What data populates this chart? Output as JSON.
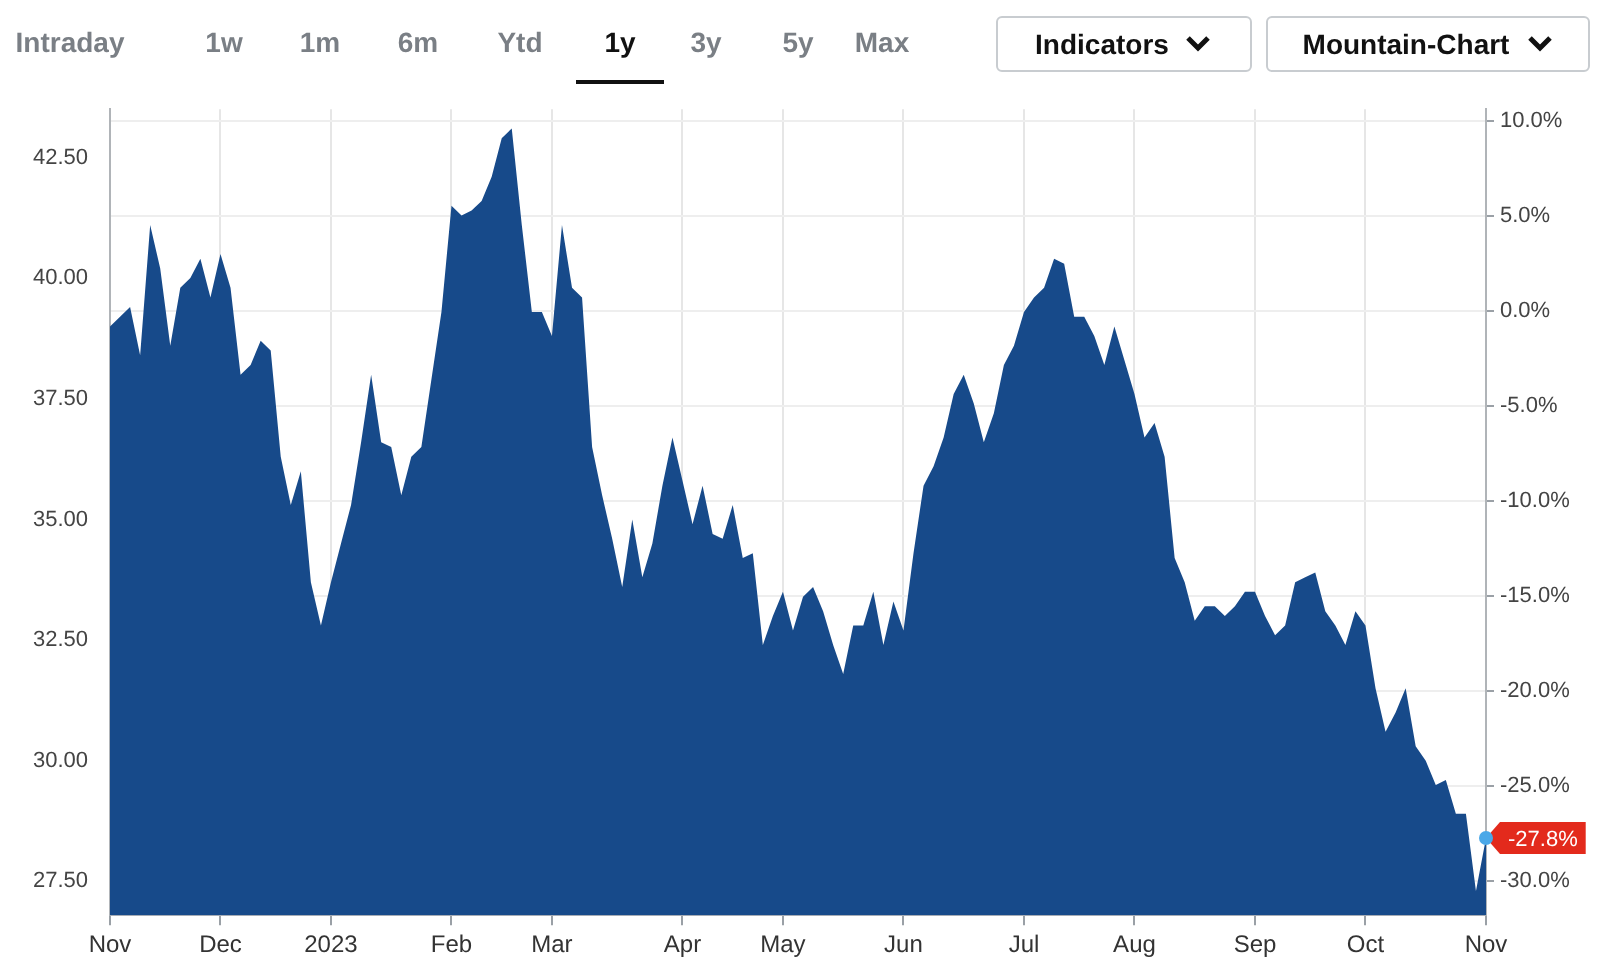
{
  "chart_data": {
    "type": "area",
    "categories": [
      "Nov",
      null,
      null,
      null,
      null,
      null,
      null,
      null,
      null,
      null,
      null,
      "Dec",
      null,
      null,
      null,
      null,
      null,
      null,
      null,
      null,
      null,
      null,
      "2023",
      null,
      null,
      null,
      null,
      null,
      null,
      null,
      null,
      null,
      null,
      null,
      "Feb",
      null,
      null,
      null,
      null,
      null,
      null,
      null,
      null,
      null,
      "Mar",
      null,
      null,
      null,
      null,
      null,
      null,
      null,
      null,
      null,
      null,
      null,
      null,
      "Apr",
      null,
      null,
      null,
      null,
      null,
      null,
      null,
      null,
      null,
      "May",
      null,
      null,
      null,
      null,
      null,
      null,
      null,
      null,
      null,
      null,
      null,
      "Jun",
      null,
      null,
      null,
      null,
      null,
      null,
      null,
      null,
      null,
      null,
      null,
      "Jul",
      null,
      null,
      null,
      null,
      null,
      null,
      null,
      null,
      null,
      null,
      "Aug",
      null,
      null,
      null,
      null,
      null,
      null,
      null,
      null,
      null,
      null,
      null,
      "Sep",
      null,
      null,
      null,
      null,
      null,
      null,
      null,
      null,
      null,
      null,
      "Oct",
      null,
      null,
      null,
      null,
      null,
      null,
      null,
      null,
      null,
      null,
      null,
      "Nov"
    ],
    "series": [
      {
        "color": "#174a8a",
        "values": [
          39.0,
          39.2,
          39.4,
          38.4,
          41.1,
          40.2,
          38.6,
          39.8,
          40.0,
          40.4,
          39.6,
          40.5,
          39.8,
          38.0,
          38.2,
          38.7,
          38.5,
          36.3,
          35.3,
          36.0,
          33.7,
          32.8,
          33.7,
          34.5,
          35.3,
          36.6,
          38.0,
          36.6,
          36.5,
          35.5,
          36.3,
          36.5,
          37.9,
          39.3,
          41.5,
          41.3,
          41.4,
          41.6,
          42.1,
          42.9,
          43.1,
          41.1,
          39.3,
          39.3,
          38.8,
          41.1,
          39.8,
          39.6,
          36.5,
          35.5,
          34.6,
          33.6,
          35.0,
          33.8,
          34.5,
          35.7,
          36.7,
          35.8,
          34.9,
          35.7,
          34.7,
          34.6,
          35.3,
          34.2,
          34.3,
          32.4,
          33.0,
          33.5,
          32.7,
          33.4,
          33.6,
          33.1,
          32.4,
          31.8,
          32.8,
          32.8,
          33.5,
          32.4,
          33.3,
          32.7,
          34.3,
          35.7,
          36.1,
          36.7,
          37.6,
          38.0,
          37.4,
          36.6,
          37.2,
          38.2,
          38.6,
          39.3,
          39.6,
          39.8,
          40.4,
          40.3,
          39.2,
          39.2,
          38.8,
          38.2,
          39.0,
          38.3,
          37.6,
          36.7,
          37.0,
          36.3,
          34.2,
          33.7,
          32.9,
          33.2,
          33.2,
          33.0,
          33.2,
          33.5,
          33.5,
          33.0,
          32.6,
          32.8,
          33.7,
          33.8,
          33.9,
          33.1,
          32.8,
          32.4,
          33.1,
          32.8,
          31.5,
          30.6,
          31.0,
          31.5,
          30.3,
          30.0,
          29.5,
          29.6,
          28.9,
          28.9,
          27.3,
          28.4
        ]
      }
    ],
    "ylim": [
      26.8,
      43.5
    ],
    "yticks": [
      {
        "value": 27.5,
        "label": "27.50"
      },
      {
        "value": 30,
        "label": "30.00"
      },
      {
        "value": 32.5,
        "label": "32.50"
      },
      {
        "value": 35,
        "label": "35.00"
      },
      {
        "value": 37.5,
        "label": "37.50"
      },
      {
        "value": 40,
        "label": "40.00"
      },
      {
        "value": 42.5,
        "label": "42.50"
      }
    ],
    "y2lim": [
      -31.8,
      10.6
    ],
    "y2ticks": [
      {
        "value": -30,
        "label": "-30.0%"
      },
      {
        "value": -25,
        "label": "-25.0%"
      },
      {
        "value": -20,
        "label": "-20.0%"
      },
      {
        "value": -15,
        "label": "-15.0%"
      },
      {
        "value": -10,
        "label": "-10.0%"
      },
      {
        "value": -5,
        "label": "-5.0%"
      },
      {
        "value": 0,
        "label": "0.0%"
      },
      {
        "value": 5,
        "label": "5.0%"
      },
      {
        "value": 10,
        "label": "10.0%"
      }
    ],
    "grid": true,
    "legend": false,
    "annotations": [
      "Intraday",
      "1w",
      "1m",
      "6m",
      "Ytd",
      "1y",
      "3y",
      "5y",
      "Max",
      "Indicators",
      "Mountain-Chart",
      "-27.8%"
    ]
  }
}
